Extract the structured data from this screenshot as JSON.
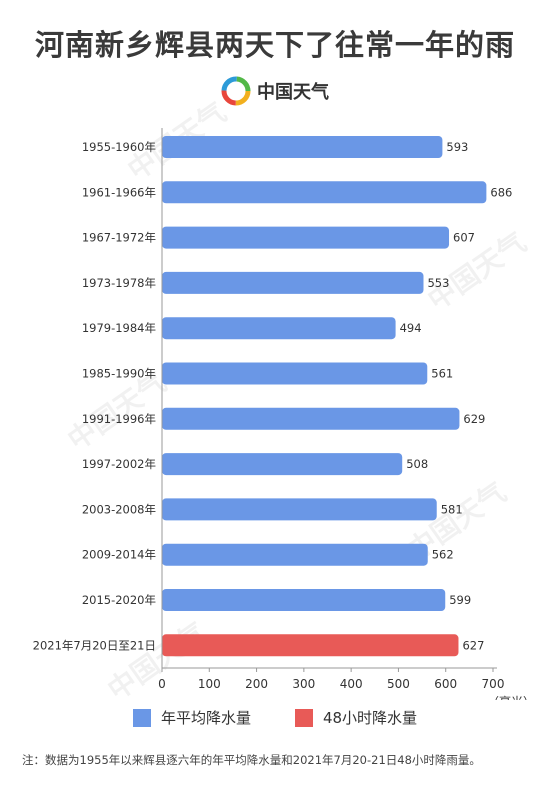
{
  "title": "河南新乡辉县两天下了往常一年的雨",
  "brand": {
    "name": "中国天气",
    "icon": "china-weather-logo"
  },
  "colors": {
    "blue": "#6a97e6",
    "red": "#e85a57"
  },
  "chart_data": {
    "type": "bar",
    "orientation": "horizontal",
    "categories": [
      "1955-1960年",
      "1961-1966年",
      "1967-1972年",
      "1973-1978年",
      "1979-1984年",
      "1985-1990年",
      "1991-1996年",
      "1997-2002年",
      "2003-2008年",
      "2009-2014年",
      "2015-2020年",
      "2021年7月20日至21日"
    ],
    "values": [
      593,
      686,
      607,
      553,
      494,
      561,
      629,
      508,
      581,
      562,
      599,
      627
    ],
    "bar_series": [
      0,
      0,
      0,
      0,
      0,
      0,
      0,
      0,
      0,
      0,
      0,
      1
    ],
    "series": [
      {
        "name": "年平均降水量",
        "color": "#6a97e6"
      },
      {
        "name": "48小时降水量",
        "color": "#e85a57"
      }
    ],
    "xlim": [
      0,
      700
    ],
    "xticks": [
      0,
      100,
      200,
      300,
      400,
      500,
      600,
      700
    ],
    "xunit": "（毫米）",
    "grid": false,
    "legend": "bottom"
  },
  "note": "注：数据为1955年以来辉县逐六年的年平均降水量和2021年7月20-21日48小时降雨量。"
}
